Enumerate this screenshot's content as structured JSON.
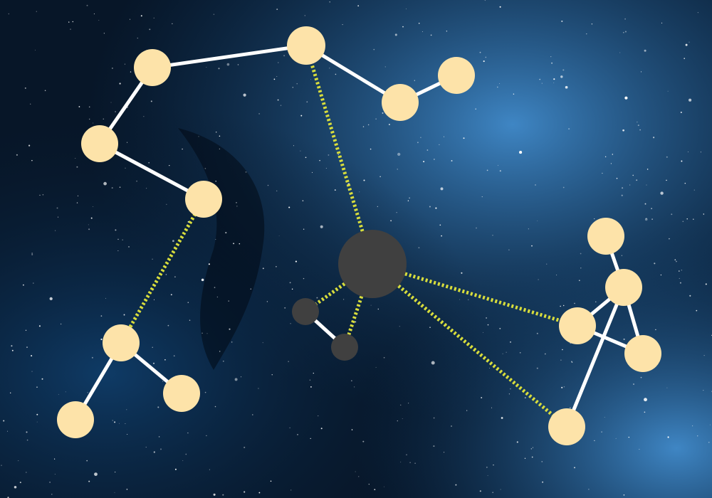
{
  "colors": {
    "sky_deep": "#071628",
    "sky_mid": "#0f3b66",
    "sky_bright": "#3f86c4",
    "star": "#ffffff",
    "node_fill": "#fde3a9",
    "hub_fill": "#404040",
    "solid_edge": "#ffffff",
    "dotted_edge": "#d8dd3c"
  },
  "diagram": {
    "nodes": [
      {
        "id": "n1",
        "kind": "star-node"
      },
      {
        "id": "n2",
        "kind": "star-node"
      },
      {
        "id": "n3",
        "kind": "star-node"
      },
      {
        "id": "n4",
        "kind": "star-node"
      },
      {
        "id": "n5",
        "kind": "star-node"
      },
      {
        "id": "n6",
        "kind": "star-node"
      },
      {
        "id": "n7",
        "kind": "star-node"
      },
      {
        "id": "n8",
        "kind": "star-node"
      },
      {
        "id": "n9",
        "kind": "star-node"
      },
      {
        "id": "n10",
        "kind": "star-node"
      },
      {
        "id": "n11",
        "kind": "star-node"
      },
      {
        "id": "n12",
        "kind": "star-node"
      },
      {
        "id": "n13",
        "kind": "star-node"
      },
      {
        "id": "n14",
        "kind": "star-node"
      },
      {
        "id": "n15",
        "kind": "star-node"
      },
      {
        "id": "n16",
        "kind": "star-node"
      },
      {
        "id": "hub",
        "kind": "hub-node"
      },
      {
        "id": "s1",
        "kind": "small-dark-node"
      },
      {
        "id": "s2",
        "kind": "small-dark-node"
      }
    ],
    "solid_edges": [
      [
        "n1",
        "n2"
      ],
      [
        "n1",
        "n3"
      ],
      [
        "n3",
        "n4"
      ],
      [
        "n2",
        "n5"
      ],
      [
        "n5",
        "n6"
      ],
      [
        "n7",
        "n8"
      ],
      [
        "n7",
        "n9"
      ],
      [
        "n10",
        "n11"
      ],
      [
        "n11",
        "n12"
      ],
      [
        "n11",
        "n13"
      ],
      [
        "n12",
        "n14"
      ],
      [
        "n11",
        "n15"
      ],
      [
        "s1",
        "s2"
      ]
    ],
    "dotted_edges": [
      [
        "hub",
        "n2"
      ],
      [
        "hub",
        "s1"
      ],
      [
        "hub",
        "s2"
      ],
      [
        "hub",
        "n12"
      ],
      [
        "hub",
        "n15"
      ],
      [
        "n4",
        "n7"
      ]
    ]
  }
}
